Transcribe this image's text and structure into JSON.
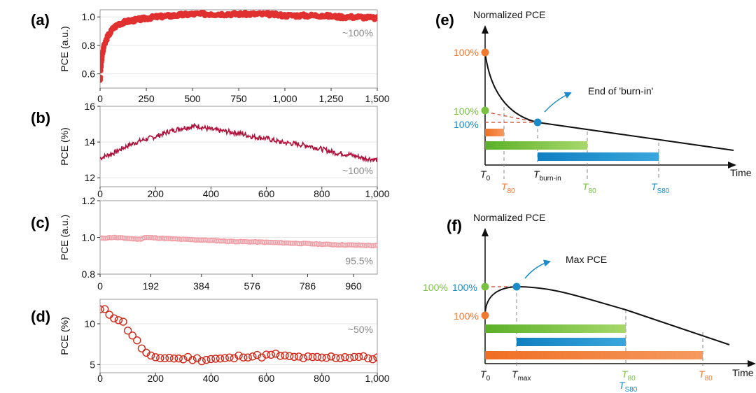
{
  "colors": {
    "red": "#e03030",
    "crimson": "#b0103a",
    "pink": "#f0a0a8",
    "hollow_red": "#d02818",
    "green": "#7ac142",
    "blue": "#1a8bc8",
    "orange": "#f07830",
    "dash_red": "#d04020"
  },
  "chart_data": [
    {
      "type": "scatter",
      "label": "(a)",
      "ylabel": "PCE (a.u.)",
      "xlim": [
        0,
        1500
      ],
      "ylim": [
        0.5,
        1.05
      ],
      "xticks": [
        0,
        250,
        500,
        750,
        1000,
        1250,
        1500
      ],
      "xtick_labels": [
        "0",
        "250",
        "500",
        "750",
        "1,000",
        "1,250",
        "1,500"
      ],
      "yticks": [
        0.6,
        0.8,
        1.0
      ],
      "ytick_labels": [
        "0.6",
        "0.8",
        "1.0"
      ],
      "annotation": "~100%",
      "series": [
        {
          "name": "PCE",
          "x": [
            0,
            5,
            10,
            20,
            40,
            70,
            100,
            150,
            200,
            250,
            300,
            400,
            500,
            600,
            700,
            800,
            900,
            1000,
            1100,
            1200,
            1300,
            1400,
            1500
          ],
          "y": [
            0.56,
            0.66,
            0.72,
            0.79,
            0.86,
            0.92,
            0.95,
            0.97,
            0.98,
            0.99,
            1.0,
            1.01,
            1.02,
            1.02,
            1.02,
            1.02,
            1.02,
            1.01,
            1.01,
            1.01,
            1.0,
            1.0,
            0.99
          ]
        }
      ]
    },
    {
      "type": "line",
      "label": "(b)",
      "ylabel": "PCE (%)",
      "xlim": [
        0,
        1000
      ],
      "ylim": [
        11.5,
        16
      ],
      "xticks": [
        0,
        200,
        400,
        600,
        800,
        1000
      ],
      "xtick_labels": [
        "0",
        "200",
        "400",
        "600",
        "800",
        "1,000"
      ],
      "yticks": [
        12,
        14,
        16
      ],
      "ytick_labels": [
        "12",
        "14",
        "16"
      ],
      "annotation": "~100%",
      "series": [
        {
          "name": "PCE",
          "x": [
            0,
            50,
            100,
            150,
            200,
            250,
            300,
            350,
            400,
            450,
            500,
            550,
            600,
            650,
            700,
            750,
            800,
            850,
            900,
            950,
            1000
          ],
          "y": [
            13.1,
            13.4,
            13.8,
            14.1,
            14.3,
            14.6,
            14.8,
            14.9,
            14.7,
            14.6,
            14.5,
            14.3,
            14.2,
            14.0,
            13.9,
            13.8,
            13.6,
            13.4,
            13.3,
            13.1,
            13.0
          ]
        }
      ]
    },
    {
      "type": "scatter",
      "label": "(c)",
      "ylabel": "PCE (a.u.)",
      "xlim": [
        0,
        1050
      ],
      "ylim": [
        0.8,
        1.2
      ],
      "xticks": [
        0,
        192,
        384,
        576,
        786,
        960
      ],
      "xtick_labels": [
        "0",
        "192",
        "384",
        "576",
        "786",
        "960"
      ],
      "yticks": [
        0.8,
        1.0,
        1.2
      ],
      "ytick_labels": [
        "0.8",
        "1.0",
        "1.2"
      ],
      "annotation": "95.5%",
      "series": [
        {
          "name": "PCE",
          "x": [
            0,
            50,
            100,
            150,
            170,
            200,
            300,
            400,
            500,
            600,
            700,
            800,
            900,
            1000,
            1050
          ],
          "y": [
            0.995,
            1.0,
            0.995,
            0.99,
            1.0,
            0.998,
            0.99,
            0.985,
            0.978,
            0.975,
            0.97,
            0.965,
            0.96,
            0.957,
            0.955
          ]
        }
      ]
    },
    {
      "type": "scatter",
      "label": "(d)",
      "ylabel": "PCE (%)",
      "xlim": [
        0,
        1000
      ],
      "ylim": [
        4,
        13
      ],
      "xticks": [
        0,
        200,
        400,
        600,
        800,
        1000
      ],
      "xtick_labels": [
        "0",
        "200",
        "400",
        "600",
        "800",
        "1,000"
      ],
      "yticks": [
        5,
        10
      ],
      "ytick_labels": [
        "5",
        "10"
      ],
      "annotation": "~50%",
      "series": [
        {
          "name": "PCE",
          "x": [
            0,
            20,
            40,
            60,
            80,
            100,
            120,
            140,
            160,
            180,
            200,
            240,
            280,
            320,
            360,
            400,
            440,
            480,
            520,
            560,
            600,
            640,
            680,
            720,
            760,
            800,
            840,
            880,
            920,
            960,
            1000
          ],
          "y": [
            11.7,
            11.6,
            11.0,
            10.7,
            10.3,
            9.3,
            8.5,
            7.5,
            6.6,
            6.0,
            5.7,
            5.9,
            5.7,
            5.8,
            5.6,
            5.7,
            5.7,
            5.8,
            6.1,
            6.0,
            6.1,
            6.2,
            5.9,
            5.9,
            5.8,
            5.8,
            5.9,
            5.9,
            6.0,
            5.8,
            5.8
          ]
        }
      ]
    }
  ],
  "panel_e": {
    "label": "(e)",
    "ylabel": "Normalized PCE",
    "xlabel": "Time",
    "pct_orange": "100%",
    "pct_green": "100%",
    "pct_blue": "100%",
    "arrow_text": "End of 'burn-in'",
    "t0_main": "T",
    "t0_sub": "0",
    "t80a_main": "T",
    "t80a_sub": "80",
    "tburn_main": "T",
    "tburn_sub": "burn-in",
    "t80b_main": "T",
    "t80b_sub": "80",
    "ts80_main": "T",
    "ts80_sub": "S80"
  },
  "panel_f": {
    "label": "(f)",
    "ylabel": "Normalized PCE",
    "xlabel": "Time",
    "pct_green": "100%",
    "pct_blue": "100%",
    "pct_orange": "100%",
    "arrow_text": "Max PCE",
    "t0_main": "T",
    "t0_sub": "0",
    "tmax_main": "T",
    "tmax_sub": "max",
    "t80g_main": "T",
    "t80g_sub": "80",
    "ts80_main": "T",
    "ts80_sub": "S80",
    "t80o_main": "T",
    "t80o_sub": "80"
  }
}
